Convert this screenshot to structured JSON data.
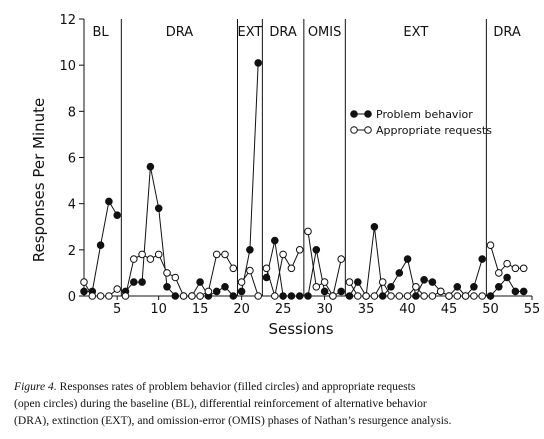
{
  "chart_data": {
    "type": "line",
    "xlabel": "Sessions",
    "ylabel": "Responses Per Minute",
    "xlim": [
      1,
      55
    ],
    "ylim": [
      0,
      12
    ],
    "xticks": [
      5,
      10,
      15,
      20,
      25,
      30,
      35,
      40,
      45,
      50,
      55
    ],
    "yticks": [
      0,
      2,
      4,
      6,
      8,
      10,
      12
    ],
    "phases": [
      {
        "label": "BL",
        "start": 1,
        "end": 5
      },
      {
        "label": "DRA",
        "start": 6,
        "end": 19
      },
      {
        "label": "EXT",
        "start": 20,
        "end": 22
      },
      {
        "label": "DRA",
        "start": 23,
        "end": 27
      },
      {
        "label": "OMIS",
        "start": 28,
        "end": 32
      },
      {
        "label": "EXT",
        "start": 33,
        "end": 49
      },
      {
        "label": "DRA",
        "start": 50,
        "end": 54
      }
    ],
    "phase_lines": [
      5.5,
      19.5,
      22.5,
      27.5,
      32.5,
      49.5
    ],
    "legend_position": "upper-right",
    "series": [
      {
        "name": "Problem behavior",
        "marker": "filled-circle",
        "color": "#111111",
        "x": [
          1,
          2,
          3,
          4,
          5,
          6,
          7,
          8,
          9,
          10,
          11,
          12,
          13,
          14,
          15,
          16,
          17,
          18,
          19,
          20,
          21,
          22,
          23,
          24,
          25,
          26,
          27,
          28,
          29,
          30,
          31,
          32,
          33,
          34,
          35,
          36,
          37,
          38,
          39,
          40,
          41,
          42,
          43,
          44,
          45,
          46,
          47,
          48,
          49,
          50,
          51,
          52,
          53,
          54
        ],
        "y": [
          0.2,
          0.2,
          2.2,
          4.1,
          3.5,
          0.2,
          0.6,
          0.6,
          5.6,
          3.8,
          0.4,
          0,
          0,
          0,
          0.6,
          0,
          0.2,
          0.4,
          0,
          0.2,
          2,
          10.1,
          0.8,
          2.4,
          0,
          0,
          0,
          0,
          2,
          0.2,
          0,
          0.2,
          0,
          0.6,
          0,
          3,
          0,
          0.4,
          1,
          1.6,
          0,
          0.7,
          0.6,
          0.2,
          0,
          0.4,
          0,
          0.4,
          1.6,
          0,
          0.4,
          0.8,
          0.2,
          0.2
        ]
      },
      {
        "name": "Appropriate requests",
        "marker": "open-circle",
        "color": "#111111",
        "x": [
          1,
          2,
          3,
          4,
          5,
          6,
          7,
          8,
          9,
          10,
          11,
          12,
          13,
          14,
          15,
          16,
          17,
          18,
          19,
          20,
          21,
          22,
          23,
          24,
          25,
          26,
          27,
          28,
          29,
          30,
          31,
          32,
          33,
          34,
          35,
          36,
          37,
          38,
          39,
          40,
          41,
          42,
          43,
          44,
          45,
          46,
          47,
          48,
          49,
          50,
          51,
          52,
          53,
          54
        ],
        "y": [
          0.6,
          0,
          0,
          0,
          0.3,
          0,
          1.6,
          1.8,
          1.6,
          1.8,
          1,
          0.8,
          0,
          0,
          0,
          0.2,
          1.8,
          1.8,
          1.2,
          0.6,
          1.1,
          0,
          1.2,
          0,
          1.8,
          1.2,
          2,
          2.8,
          0.4,
          0.6,
          0,
          1.6,
          0.6,
          0,
          0,
          0,
          0.6,
          0,
          0,
          0,
          0.4,
          0,
          0,
          0.2,
          0,
          0,
          0,
          0,
          0,
          2.2,
          1,
          1.4,
          1.2,
          1.2
        ]
      }
    ]
  },
  "caption": {
    "figure_label": "Figure 4.",
    "line1": " Responses rates of problem behavior (filled circles) and appropriate requests",
    "line2": "(open circles) during the baseline (BL), differential reinforcement of alternative behavior",
    "line3": "(DRA), extinction (EXT), and omission-error (OMIS) phases of Nathan’s resurgence analysis."
  }
}
